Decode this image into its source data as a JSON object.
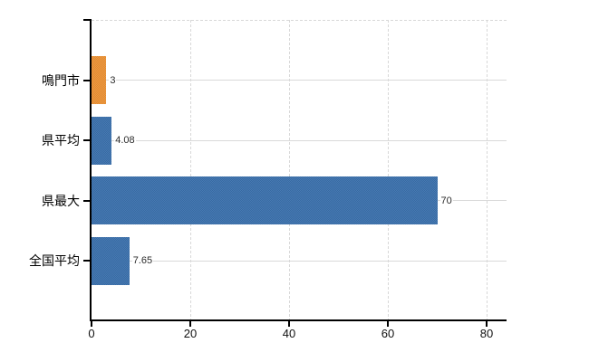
{
  "chart_data": {
    "type": "bar",
    "orientation": "horizontal",
    "categories": [
      "鳴門市",
      "県平均",
      "県最大",
      "全国平均"
    ],
    "values": [
      3,
      4.08,
      70,
      7.65
    ],
    "value_labels": [
      "3",
      "4.08",
      "70",
      "7.65"
    ],
    "series": [
      {
        "name": "",
        "values": [
          3,
          4.08,
          70,
          7.65
        ]
      }
    ],
    "x_axis": {
      "ticks": [
        0,
        20,
        40,
        60,
        80
      ],
      "tick_labels": [
        "0",
        "20",
        "40",
        "60",
        "80"
      ],
      "range": [
        0,
        84
      ]
    },
    "y_axis": {
      "tick_labels": [
        "鳴門市",
        "県平均",
        "県最大",
        "全国平均"
      ]
    },
    "legend": "none",
    "grid": {
      "vertical_gridlines_at": [
        20,
        40,
        60,
        80
      ],
      "horizontal_gridlines": "category-centers",
      "top_border": "dashed"
    },
    "colors": {
      "highlight_bar": "#EC9134",
      "default_bar": "#3A70AC",
      "bar_colors": [
        "#EC9134",
        "#3A70AC",
        "#3A70AC",
        "#3A70AC"
      ],
      "axis": "#000000",
      "gridline": "#D8D8D8",
      "category_text": "#000000",
      "tick_text": "#111111",
      "value_text": "#2B2B2B",
      "background": "#FFFFFF"
    }
  }
}
